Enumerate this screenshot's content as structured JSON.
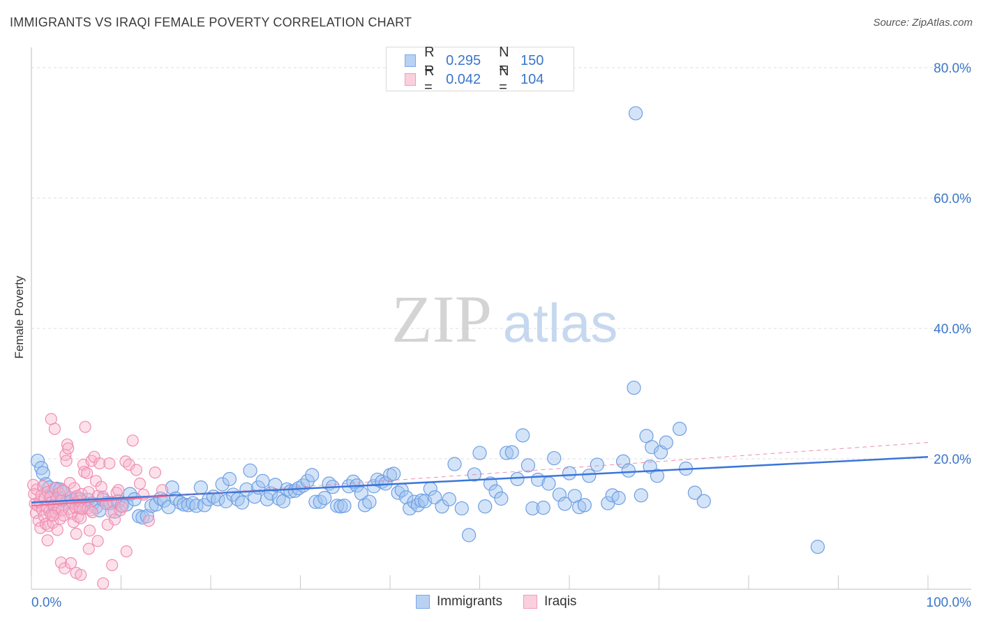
{
  "title": "IMMIGRANTS VS IRAQI FEMALE POVERTY CORRELATION CHART",
  "source": "Source: ZipAtlas.com",
  "watermark": {
    "zip": "ZIP",
    "atlas": "atlas"
  },
  "legend_top": [
    {
      "r_label": "R =",
      "r_value": "0.295",
      "n_label": "N =",
      "n_value": "150",
      "color": "#7da9e6"
    },
    {
      "r_label": "R =",
      "r_value": "0.042",
      "n_label": "N =",
      "n_value": "104",
      "color": "#f39ab7"
    }
  ],
  "legend_bottom": [
    {
      "label": "Immigrants",
      "color": "#7da9e6"
    },
    {
      "label": "Iraqis",
      "color": "#f39ab7"
    }
  ],
  "chart_data": {
    "type": "scatter",
    "title": "IMMIGRANTS VS IRAQI FEMALE POVERTY CORRELATION CHART",
    "xlabel": "",
    "ylabel": "Female Poverty",
    "xlim": [
      0,
      100
    ],
    "ylim": [
      0,
      80
    ],
    "x_tick_labels": [
      "0.0%",
      "100.0%"
    ],
    "y_ticks": [
      20,
      40,
      60,
      80
    ],
    "y_tick_labels": [
      "20.0%",
      "40.0%",
      "60.0%",
      "80.0%"
    ],
    "grid": "horizontal dashed",
    "legend_position": "bottom",
    "colors": {
      "immigrants": "#3a75d9",
      "iraqis": "#ec6f98",
      "tick_label": "#3a75c9"
    },
    "series": [
      {
        "name": "Immigrants",
        "color": "#7da9e6",
        "trend": {
          "x": [
            0,
            100
          ],
          "y": [
            13.3,
            20.3
          ],
          "style": "solid"
        },
        "points": [
          [
            0.7,
            19.7
          ],
          [
            1.1,
            18.6
          ],
          [
            1.3,
            17.8
          ],
          [
            1.6,
            16.1
          ],
          [
            2.0,
            15.6
          ],
          [
            2.2,
            13.9
          ],
          [
            2.8,
            15.4
          ],
          [
            3.2,
            15.3
          ],
          [
            3.6,
            14.9
          ],
          [
            4.0,
            13.3
          ],
          [
            4.5,
            13.6
          ],
          [
            5.0,
            13.9
          ],
          [
            5.4,
            13.8
          ],
          [
            5.9,
            12.9
          ],
          [
            6.3,
            13.7
          ],
          [
            6.8,
            13.1
          ],
          [
            7.2,
            12.6
          ],
          [
            7.6,
            12.1
          ],
          [
            8.0,
            13.7
          ],
          [
            8.4,
            13.2
          ],
          [
            8.8,
            13.2
          ],
          [
            9.3,
            11.9
          ],
          [
            9.7,
            13.5
          ],
          [
            10.1,
            12.9
          ],
          [
            10.6,
            13.0
          ],
          [
            11.0,
            14.6
          ],
          [
            11.5,
            13.8
          ],
          [
            12.0,
            11.2
          ],
          [
            12.4,
            11.0
          ],
          [
            12.9,
            11.2
          ],
          [
            13.4,
            12.8
          ],
          [
            13.9,
            13.0
          ],
          [
            14.4,
            13.9
          ],
          [
            14.8,
            13.6
          ],
          [
            15.3,
            12.6
          ],
          [
            15.7,
            15.6
          ],
          [
            16.1,
            13.9
          ],
          [
            16.6,
            13.3
          ],
          [
            17.0,
            13.0
          ],
          [
            17.5,
            12.9
          ],
          [
            18.0,
            13.2
          ],
          [
            18.4,
            12.8
          ],
          [
            18.9,
            15.6
          ],
          [
            19.3,
            12.9
          ],
          [
            19.8,
            13.8
          ],
          [
            20.3,
            14.2
          ],
          [
            20.8,
            13.8
          ],
          [
            21.3,
            16.1
          ],
          [
            21.7,
            13.5
          ],
          [
            22.1,
            16.9
          ],
          [
            22.5,
            14.5
          ],
          [
            23.0,
            13.8
          ],
          [
            23.5,
            13.3
          ],
          [
            24.0,
            15.3
          ],
          [
            24.4,
            18.2
          ],
          [
            24.9,
            14.2
          ],
          [
            25.3,
            15.6
          ],
          [
            25.8,
            16.6
          ],
          [
            26.3,
            13.8
          ],
          [
            26.7,
            14.7
          ],
          [
            27.2,
            16.0
          ],
          [
            27.6,
            13.9
          ],
          [
            28.1,
            13.5
          ],
          [
            28.5,
            15.3
          ],
          [
            28.9,
            15.0
          ],
          [
            29.4,
            15.1
          ],
          [
            29.8,
            15.5
          ],
          [
            30.3,
            15.9
          ],
          [
            30.8,
            16.6
          ],
          [
            31.3,
            17.5
          ],
          [
            31.7,
            13.4
          ],
          [
            32.2,
            13.4
          ],
          [
            32.7,
            14.0
          ],
          [
            33.2,
            16.2
          ],
          [
            33.6,
            15.7
          ],
          [
            34.1,
            12.8
          ],
          [
            34.5,
            12.7
          ],
          [
            34.9,
            12.8
          ],
          [
            35.4,
            15.8
          ],
          [
            35.9,
            16.5
          ],
          [
            36.3,
            15.9
          ],
          [
            36.8,
            14.7
          ],
          [
            37.2,
            12.9
          ],
          [
            37.7,
            13.4
          ],
          [
            38.2,
            15.8
          ],
          [
            38.6,
            16.8
          ],
          [
            39.1,
            16.5
          ],
          [
            39.5,
            16.2
          ],
          [
            40.0,
            17.5
          ],
          [
            40.4,
            17.7
          ],
          [
            40.9,
            14.8
          ],
          [
            41.3,
            15.2
          ],
          [
            41.8,
            14.1
          ],
          [
            42.2,
            12.4
          ],
          [
            42.7,
            13.4
          ],
          [
            43.1,
            12.9
          ],
          [
            43.5,
            13.6
          ],
          [
            43.9,
            13.5
          ],
          [
            44.5,
            15.4
          ],
          [
            45.0,
            14.1
          ],
          [
            45.8,
            12.7
          ],
          [
            46.6,
            13.8
          ],
          [
            47.2,
            19.2
          ],
          [
            48.0,
            12.4
          ],
          [
            48.8,
            8.3
          ],
          [
            49.4,
            17.6
          ],
          [
            50.0,
            20.9
          ],
          [
            50.6,
            12.7
          ],
          [
            51.2,
            16.2
          ],
          [
            51.8,
            15.0
          ],
          [
            52.4,
            13.9
          ],
          [
            53.0,
            20.9
          ],
          [
            53.6,
            21.0
          ],
          [
            54.2,
            16.9
          ],
          [
            54.8,
            23.6
          ],
          [
            55.4,
            19.0
          ],
          [
            55.9,
            12.4
          ],
          [
            56.5,
            16.8
          ],
          [
            57.1,
            12.5
          ],
          [
            57.7,
            16.2
          ],
          [
            58.3,
            20.1
          ],
          [
            58.9,
            14.5
          ],
          [
            59.5,
            13.1
          ],
          [
            60.0,
            17.8
          ],
          [
            60.6,
            14.3
          ],
          [
            61.1,
            12.6
          ],
          [
            61.7,
            12.9
          ],
          [
            62.2,
            17.4
          ],
          [
            63.1,
            19.1
          ],
          [
            64.3,
            13.2
          ],
          [
            64.8,
            14.4
          ],
          [
            65.5,
            14.0
          ],
          [
            66.0,
            19.6
          ],
          [
            66.6,
            18.2
          ],
          [
            67.2,
            30.9
          ],
          [
            68.0,
            14.4
          ],
          [
            68.6,
            23.5
          ],
          [
            69.0,
            18.8
          ],
          [
            69.2,
            21.8
          ],
          [
            69.8,
            17.4
          ],
          [
            70.2,
            21.0
          ],
          [
            70.8,
            22.5
          ],
          [
            72.3,
            24.6
          ],
          [
            73.0,
            18.5
          ],
          [
            74.0,
            14.8
          ],
          [
            75.0,
            13.5
          ],
          [
            67.4,
            73.0
          ],
          [
            87.7,
            6.5
          ],
          [
            3.0,
            14.0
          ],
          [
            2.6,
            12.6
          ]
        ]
      },
      {
        "name": "Iraqis",
        "color": "#f39ab7",
        "trend": {
          "x": [
            0,
            100
          ],
          "y": [
            12.8,
            22.5
          ],
          "style": "dashed"
        },
        "points": [
          [
            0.2,
            16.0
          ],
          [
            0.3,
            14.6
          ],
          [
            0.4,
            13.1
          ],
          [
            0.5,
            11.7
          ],
          [
            0.6,
            15.3
          ],
          [
            0.7,
            12.8
          ],
          [
            0.8,
            10.5
          ],
          [
            0.9,
            13.4
          ],
          [
            1.0,
            9.4
          ],
          [
            1.1,
            14.4
          ],
          [
            1.2,
            12.2
          ],
          [
            1.3,
            15.8
          ],
          [
            1.4,
            11.2
          ],
          [
            1.5,
            13.9
          ],
          [
            1.6,
            10.0
          ],
          [
            1.7,
            12.6
          ],
          [
            1.8,
            14.9
          ],
          [
            1.9,
            9.7
          ],
          [
            2.0,
            12.0
          ],
          [
            2.1,
            14.2
          ],
          [
            2.2,
            11.4
          ],
          [
            2.3,
            13.4
          ],
          [
            2.4,
            10.2
          ],
          [
            2.5,
            12.9
          ],
          [
            2.6,
            15.5
          ],
          [
            2.7,
            11.7
          ],
          [
            2.8,
            13.9
          ],
          [
            2.9,
            9.1
          ],
          [
            3.0,
            12.3
          ],
          [
            3.1,
            14.7
          ],
          [
            3.2,
            10.8
          ],
          [
            3.3,
            13.6
          ],
          [
            3.4,
            12.1
          ],
          [
            3.5,
            15.2
          ],
          [
            3.6,
            11.3
          ],
          [
            3.8,
            20.6
          ],
          [
            3.9,
            19.7
          ],
          [
            4.0,
            22.2
          ],
          [
            4.1,
            21.6
          ],
          [
            4.2,
            12.3
          ],
          [
            4.3,
            16.3
          ],
          [
            4.4,
            14.1
          ],
          [
            4.5,
            11.6
          ],
          [
            4.6,
            13.1
          ],
          [
            4.7,
            10.3
          ],
          [
            4.8,
            15.5
          ],
          [
            4.9,
            12.5
          ],
          [
            5.0,
            8.5
          ],
          [
            5.1,
            14.3
          ],
          [
            5.2,
            11.1
          ],
          [
            5.3,
            13.5
          ],
          [
            5.4,
            12.4
          ],
          [
            5.5,
            10.9
          ],
          [
            5.6,
            14.6
          ],
          [
            5.7,
            12.3
          ],
          [
            5.8,
            19.1
          ],
          [
            5.9,
            18.0
          ],
          [
            6.0,
            24.9
          ],
          [
            6.2,
            17.8
          ],
          [
            6.3,
            12.4
          ],
          [
            6.4,
            14.9
          ],
          [
            6.5,
            9.0
          ],
          [
            6.6,
            12.1
          ],
          [
            6.7,
            19.7
          ],
          [
            6.8,
            11.8
          ],
          [
            7.0,
            20.3
          ],
          [
            7.2,
            16.6
          ],
          [
            7.4,
            14.3
          ],
          [
            7.6,
            19.3
          ],
          [
            7.8,
            15.7
          ],
          [
            8.0,
            14.2
          ],
          [
            8.3,
            13.1
          ],
          [
            8.5,
            9.9
          ],
          [
            8.7,
            19.3
          ],
          [
            8.9,
            11.8
          ],
          [
            9.1,
            13.4
          ],
          [
            9.3,
            10.7
          ],
          [
            9.5,
            14.8
          ],
          [
            9.7,
            15.2
          ],
          [
            9.9,
            12.1
          ],
          [
            10.1,
            12.6
          ],
          [
            10.5,
            19.6
          ],
          [
            10.9,
            19.1
          ],
          [
            11.3,
            22.8
          ],
          [
            11.7,
            18.3
          ],
          [
            12.1,
            16.2
          ],
          [
            12.5,
            14.5
          ],
          [
            13.1,
            10.5
          ],
          [
            13.8,
            17.9
          ],
          [
            14.6,
            15.2
          ],
          [
            2.2,
            26.1
          ],
          [
            2.6,
            24.6
          ],
          [
            3.3,
            4.1
          ],
          [
            3.7,
            3.2
          ],
          [
            4.4,
            4.0
          ],
          [
            5.0,
            2.5
          ],
          [
            5.5,
            2.2
          ],
          [
            6.4,
            6.2
          ],
          [
            7.4,
            7.4
          ],
          [
            8.0,
            0.9
          ],
          [
            9.0,
            3.7
          ],
          [
            10.6,
            5.8
          ],
          [
            2.4,
            11.3
          ],
          [
            1.8,
            7.5
          ]
        ]
      }
    ]
  }
}
